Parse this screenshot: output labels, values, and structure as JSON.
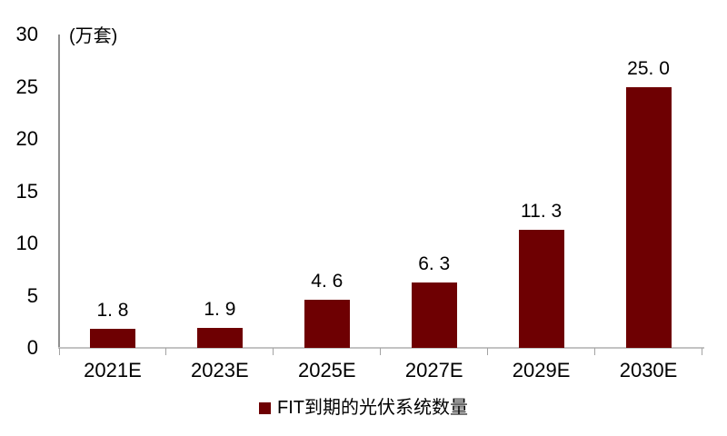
{
  "chart_data": {
    "type": "bar",
    "title": "",
    "unit_label": "(万套)",
    "categories": [
      "2021E",
      "2023E",
      "2025E",
      "2027E",
      "2029E",
      "2030E"
    ],
    "values": [
      1.8,
      1.9,
      4.6,
      6.3,
      11.3,
      25.0
    ],
    "value_labels": [
      "1. 8",
      "1. 9",
      "4. 6",
      "6. 3",
      "11. 3",
      "25. 0"
    ],
    "series": [
      {
        "name": "FIT到期的光伏系统数量",
        "values": [
          1.8,
          1.9,
          4.6,
          6.3,
          11.3,
          25.0
        ]
      }
    ],
    "xlabel": "",
    "ylabel": "(万套)",
    "ylim": [
      0,
      30
    ],
    "yticks": [
      0,
      5,
      10,
      15,
      20,
      25,
      30
    ],
    "grid": false,
    "legend_position": "bottom-center",
    "colors": {
      "bar": "#6e0002",
      "x_axis_line": "#c3c3c3",
      "y_axis_line": "#8f8f8f",
      "tick_mark": "#a3a3a3",
      "text": "#000000",
      "background": "#ffffff"
    }
  },
  "legend": {
    "marker_color": "#6e0002",
    "label": "FIT到期的光伏系统数量"
  }
}
